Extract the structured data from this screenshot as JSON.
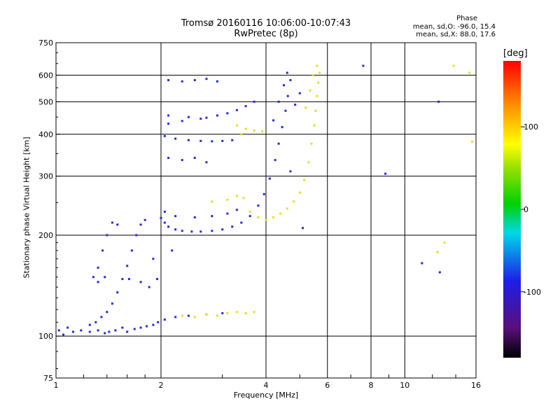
{
  "header": {
    "title": "Tromsø 20160116 10:06:00-10:07:43",
    "subtitle": "RwPretec (8p)"
  },
  "phase_info": {
    "label": "Phase",
    "line_o": "mean, sd,O: -96.0, 15.4",
    "line_x": "mean, sd,X:  88.0, 17.6"
  },
  "colorbar": {
    "title": "[deg]",
    "ticks": [
      "100",
      "0",
      "-100"
    ]
  },
  "chart_data": {
    "type": "scatter",
    "xlabel": "Frequency [MHz]",
    "ylabel": "Stationary phase Virtual Height [km]",
    "x_scale": "log",
    "y_scale": "log",
    "xlim": [
      1,
      16
    ],
    "ylim": [
      75,
      750
    ],
    "x_ticks": [
      1,
      2,
      4,
      6,
      8,
      10,
      16
    ],
    "y_ticks": [
      75,
      100,
      200,
      300,
      400,
      500,
      600,
      750
    ],
    "grid": true,
    "colors": {
      "o_mode": "#1f2be0",
      "x_mode": "#e6e01a"
    },
    "series": [
      {
        "mode_phase_deg": -96,
        "points": [
          [
            1.02,
            104
          ],
          [
            1.05,
            101
          ],
          [
            1.08,
            106
          ],
          [
            1.12,
            103
          ],
          [
            1.18,
            104
          ],
          [
            1.25,
            103
          ],
          [
            1.32,
            104
          ],
          [
            1.38,
            102
          ],
          [
            1.42,
            103
          ],
          [
            1.48,
            104
          ],
          [
            1.55,
            106
          ],
          [
            1.6,
            103
          ],
          [
            1.68,
            105
          ],
          [
            1.75,
            106
          ],
          [
            1.82,
            107
          ],
          [
            1.9,
            108
          ],
          [
            1.96,
            110
          ],
          [
            2.05,
            112
          ],
          [
            2.2,
            114
          ],
          [
            2.4,
            115
          ],
          [
            2.7,
            116
          ],
          [
            3.0,
            117
          ],
          [
            1.25,
            108
          ],
          [
            1.3,
            110
          ],
          [
            1.35,
            114
          ],
          [
            1.4,
            118
          ],
          [
            1.45,
            125
          ],
          [
            1.5,
            135
          ],
          [
            1.55,
            148
          ],
          [
            1.6,
            162
          ],
          [
            1.65,
            180
          ],
          [
            1.7,
            200
          ],
          [
            1.75,
            215
          ],
          [
            1.8,
            222
          ],
          [
            1.5,
            215
          ],
          [
            1.45,
            218
          ],
          [
            1.4,
            200
          ],
          [
            1.36,
            180
          ],
          [
            1.32,
            160
          ],
          [
            1.28,
            150
          ],
          [
            1.32,
            145
          ],
          [
            1.38,
            150
          ],
          [
            1.62,
            148
          ],
          [
            1.75,
            145
          ],
          [
            1.85,
            140
          ],
          [
            1.95,
            148
          ],
          [
            2.0,
            225
          ],
          [
            2.05,
            218
          ],
          [
            2.1,
            212
          ],
          [
            2.2,
            208
          ],
          [
            2.3,
            206
          ],
          [
            2.45,
            205
          ],
          [
            2.6,
            205
          ],
          [
            2.8,
            206
          ],
          [
            3.0,
            208
          ],
          [
            3.2,
            212
          ],
          [
            3.4,
            218
          ],
          [
            3.6,
            228
          ],
          [
            3.8,
            245
          ],
          [
            3.95,
            265
          ],
          [
            4.1,
            295
          ],
          [
            4.25,
            335
          ],
          [
            4.35,
            375
          ],
          [
            4.45,
            420
          ],
          [
            4.55,
            470
          ],
          [
            4.62,
            520
          ],
          [
            4.7,
            580
          ],
          [
            2.05,
            235
          ],
          [
            2.2,
            228
          ],
          [
            2.5,
            226
          ],
          [
            2.8,
            228
          ],
          [
            3.1,
            232
          ],
          [
            3.3,
            238
          ],
          [
            2.05,
            395
          ],
          [
            2.2,
            388
          ],
          [
            2.4,
            384
          ],
          [
            2.6,
            382
          ],
          [
            2.8,
            381
          ],
          [
            3.0,
            382
          ],
          [
            3.2,
            384
          ],
          [
            2.1,
            430
          ],
          [
            2.3,
            438
          ],
          [
            2.6,
            445
          ],
          [
            2.9,
            455
          ],
          [
            3.1,
            462
          ],
          [
            3.3,
            472
          ],
          [
            3.5,
            485
          ],
          [
            3.7,
            500
          ],
          [
            2.1,
            455
          ],
          [
            2.4,
            450
          ],
          [
            2.7,
            448
          ],
          [
            2.1,
            580
          ],
          [
            2.3,
            575
          ],
          [
            2.5,
            580
          ],
          [
            2.7,
            585
          ],
          [
            2.9,
            575
          ],
          [
            2.1,
            340
          ],
          [
            2.3,
            335
          ],
          [
            2.5,
            340
          ],
          [
            2.7,
            330
          ],
          [
            4.2,
            440
          ],
          [
            4.35,
            500
          ],
          [
            4.5,
            560
          ],
          [
            4.6,
            610
          ],
          [
            4.85,
            490
          ],
          [
            5.0,
            530
          ],
          [
            7.6,
            640
          ],
          [
            12.5,
            500
          ],
          [
            11.2,
            165
          ],
          [
            12.6,
            155
          ],
          [
            4.7,
            310
          ],
          [
            5.1,
            210
          ],
          [
            8.8,
            305
          ],
          [
            1.9,
            170
          ],
          [
            2.15,
            180
          ]
        ]
      },
      {
        "mode_phase_deg": 88,
        "points": [
          [
            2.3,
            115
          ],
          [
            2.5,
            114
          ],
          [
            2.7,
            116
          ],
          [
            2.9,
            115
          ],
          [
            3.1,
            117
          ],
          [
            3.3,
            118
          ],
          [
            3.5,
            117
          ],
          [
            3.7,
            118
          ],
          [
            3.6,
            235
          ],
          [
            3.8,
            226
          ],
          [
            4.0,
            222
          ],
          [
            4.2,
            226
          ],
          [
            4.4,
            232
          ],
          [
            4.6,
            240
          ],
          [
            4.8,
            252
          ],
          [
            5.0,
            268
          ],
          [
            5.15,
            292
          ],
          [
            5.3,
            330
          ],
          [
            5.4,
            375
          ],
          [
            5.5,
            425
          ],
          [
            5.55,
            470
          ],
          [
            5.6,
            520
          ],
          [
            5.65,
            570
          ],
          [
            5.7,
            610
          ],
          [
            5.2,
            480
          ],
          [
            5.35,
            540
          ],
          [
            5.45,
            600
          ],
          [
            3.1,
            255
          ],
          [
            3.3,
            262
          ],
          [
            3.45,
            258
          ],
          [
            2.8,
            252
          ],
          [
            3.3,
            425
          ],
          [
            3.5,
            415
          ],
          [
            3.7,
            410
          ],
          [
            3.9,
            408
          ],
          [
            3.4,
            400
          ],
          [
            5.6,
            640
          ],
          [
            15.3,
            610
          ],
          [
            15.6,
            380
          ],
          [
            13.8,
            640
          ],
          [
            12.4,
            178
          ],
          [
            13.0,
            190
          ]
        ]
      }
    ]
  }
}
